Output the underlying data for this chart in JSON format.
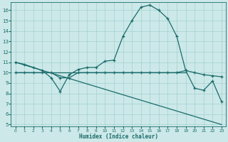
{
  "xlabel": "Humidex (Indice chaleur)",
  "background_color": "#cce8e8",
  "grid_color": "#99cccc",
  "line_color": "#1a6b6b",
  "line1_x": [
    0,
    1,
    2,
    3,
    4,
    5,
    6,
    7,
    8,
    9,
    10,
    11,
    12,
    13,
    14,
    15,
    16,
    17,
    18,
    19,
    20,
    21,
    22,
    23
  ],
  "line1_y": [
    11.0,
    10.8,
    10.5,
    10.2,
    9.5,
    8.2,
    9.8,
    10.3,
    10.5,
    10.5,
    11.1,
    11.2,
    13.5,
    15.0,
    16.3,
    16.5,
    16.0,
    15.2,
    13.5,
    10.2,
    8.5,
    8.3,
    9.2,
    7.2
  ],
  "line2_x": [
    0,
    1,
    2,
    3,
    4,
    5,
    6,
    7,
    8,
    9,
    10,
    11,
    12,
    13,
    14,
    15,
    16,
    17,
    18,
    19,
    20,
    21,
    22,
    23
  ],
  "line2_y": [
    10.0,
    10.0,
    10.0,
    10.0,
    10.0,
    9.5,
    9.5,
    10.0,
    10.0,
    10.0,
    10.0,
    10.0,
    10.0,
    10.0,
    10.0,
    10.0,
    10.0,
    10.0,
    10.0,
    10.2,
    10.0,
    9.8,
    9.7,
    9.6
  ],
  "line3_x": [
    0,
    23
  ],
  "line3_y": [
    11.0,
    5.0
  ],
  "line4_x": [
    0,
    19
  ],
  "line4_y": [
    10.0,
    10.0
  ],
  "xlim": [
    -0.5,
    23.5
  ],
  "ylim": [
    4.8,
    16.8
  ],
  "xticks": [
    0,
    1,
    2,
    3,
    4,
    5,
    6,
    7,
    8,
    9,
    10,
    11,
    12,
    13,
    14,
    15,
    16,
    17,
    18,
    19,
    20,
    21,
    22,
    23
  ],
  "yticks": [
    5,
    6,
    7,
    8,
    9,
    10,
    11,
    12,
    13,
    14,
    15,
    16
  ]
}
